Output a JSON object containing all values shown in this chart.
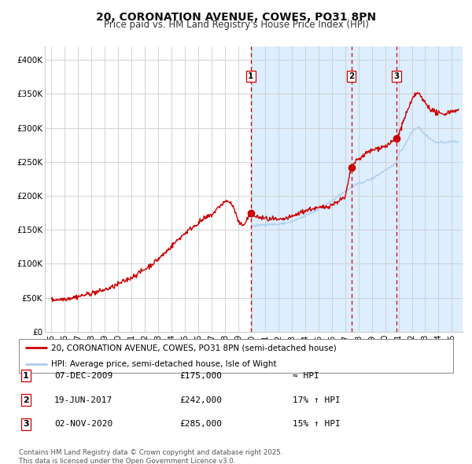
{
  "title": "20, CORONATION AVENUE, COWES, PO31 8PN",
  "subtitle": "Price paid vs. HM Land Registry's House Price Index (HPI)",
  "background_color": "#ffffff",
  "plot_bg_color": "#ffffff",
  "shaded_bg_color": "#ddeeff",
  "grid_color": "#cccccc",
  "red_line_color": "#cc0000",
  "blue_line_color": "#aaccee",
  "dashed_line_color": "#cc0000",
  "ylim": [
    0,
    420000
  ],
  "yticks": [
    0,
    50000,
    100000,
    150000,
    200000,
    250000,
    300000,
    350000,
    400000
  ],
  "ytick_labels": [
    "£0",
    "£50K",
    "£100K",
    "£150K",
    "£200K",
    "£250K",
    "£300K",
    "£350K",
    "£400K"
  ],
  "xlim_start": 1994.5,
  "xlim_end": 2025.8,
  "xticks": [
    1995,
    1996,
    1997,
    1998,
    1999,
    2000,
    2001,
    2002,
    2003,
    2004,
    2005,
    2006,
    2007,
    2008,
    2009,
    2010,
    2011,
    2012,
    2013,
    2014,
    2015,
    2016,
    2017,
    2018,
    2019,
    2020,
    2021,
    2022,
    2023,
    2024,
    2025
  ],
  "sale_dates": [
    2009.92,
    2017.46,
    2020.84
  ],
  "sale_prices": [
    175000,
    242000,
    285000
  ],
  "sale_labels": [
    "1",
    "2",
    "3"
  ],
  "sale_info": [
    {
      "label": "1",
      "date": "07-DEC-2009",
      "price": "£175,000",
      "hpi": "≈ HPI"
    },
    {
      "label": "2",
      "date": "19-JUN-2017",
      "price": "£242,000",
      "hpi": "17% ↑ HPI"
    },
    {
      "label": "3",
      "date": "02-NOV-2020",
      "price": "£285,000",
      "hpi": "15% ↑ HPI"
    }
  ],
  "legend_line1": "20, CORONATION AVENUE, COWES, PO31 8PN (semi-detached house)",
  "legend_line2": "HPI: Average price, semi-detached house, Isle of Wight",
  "footer": "Contains HM Land Registry data © Crown copyright and database right 2025.\nThis data is licensed under the Open Government Licence v3.0."
}
